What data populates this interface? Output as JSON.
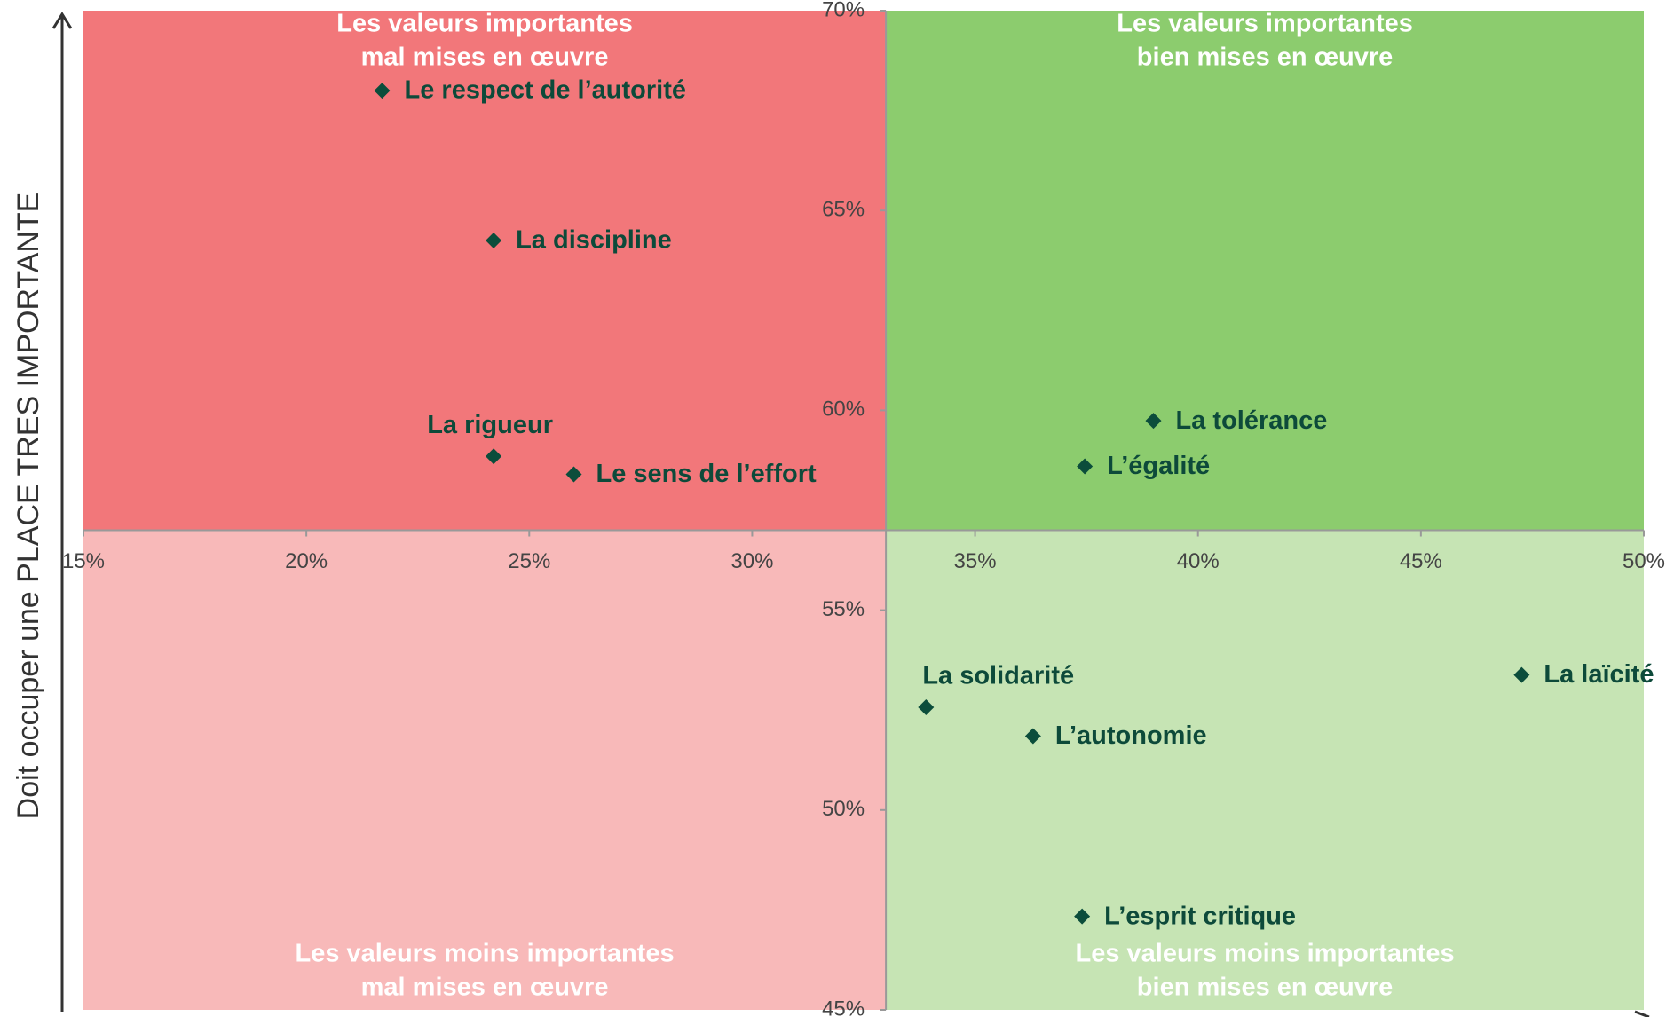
{
  "chart_data": {
    "type": "scatter",
    "y_axis_label": "Doit occuper une PLACE TRES IMPORTANTE",
    "xlim": [
      15,
      50
    ],
    "ylim": [
      45,
      70
    ],
    "x_cross": 33,
    "y_cross": 57,
    "xticks": [
      {
        "value": 15,
        "label": "15%"
      },
      {
        "value": 20,
        "label": "20%"
      },
      {
        "value": 25,
        "label": "25%"
      },
      {
        "value": 30,
        "label": "30%"
      },
      {
        "value": 35,
        "label": "35%"
      },
      {
        "value": 40,
        "label": "40%"
      },
      {
        "value": 45,
        "label": "45%"
      },
      {
        "value": 50,
        "label": "50%"
      }
    ],
    "yticks": [
      {
        "value": 45,
        "label": "45%"
      },
      {
        "value": 50,
        "label": "50%"
      },
      {
        "value": 55,
        "label": "55%"
      },
      {
        "value": 60,
        "label": "60%"
      },
      {
        "value": 65,
        "label": "65%"
      },
      {
        "value": 70,
        "label": "70%"
      }
    ],
    "marker_color": "#0b4d3b",
    "quadrants": [
      {
        "lines": [
          "Les valeurs importantes",
          "mal mises en œuvre"
        ],
        "color": "#f2777a",
        "side": "left",
        "position": "top"
      },
      {
        "lines": [
          "Les valeurs importantes",
          "bien mises en œuvre"
        ],
        "color": "#8ccc6e",
        "side": "right",
        "position": "top"
      },
      {
        "lines": [
          "Les valeurs moins importantes",
          "mal mises en œuvre"
        ],
        "color": "#f8b9b9",
        "side": "left",
        "position": "bottom"
      },
      {
        "lines": [
          "Les valeurs moins importantes",
          "bien  mises en œuvre"
        ],
        "color": "#c6e4b4",
        "side": "right",
        "position": "bottom"
      }
    ],
    "points": [
      {
        "name": "Le respect de l’autorité",
        "x": 21.7,
        "y": 68.0
      },
      {
        "name": "La discipline",
        "x": 24.2,
        "y": 64.25
      },
      {
        "name": "La rigueur",
        "x": 24.2,
        "y": 58.85
      },
      {
        "name": "Le sens de l’effort",
        "x": 26.0,
        "y": 58.4
      },
      {
        "name": "La tolérance",
        "x": 39.0,
        "y": 59.74
      },
      {
        "name": "L’égalité",
        "x": 37.46,
        "y": 58.6
      },
      {
        "name": "La solidarité",
        "x": 33.9,
        "y": 52.57
      },
      {
        "name": "L’autonomie",
        "x": 36.3,
        "y": 51.85
      },
      {
        "name": "La laïcité",
        "x": 47.26,
        "y": 53.38
      },
      {
        "name": "L’esprit critique",
        "x": 37.4,
        "y": 47.34
      }
    ]
  }
}
